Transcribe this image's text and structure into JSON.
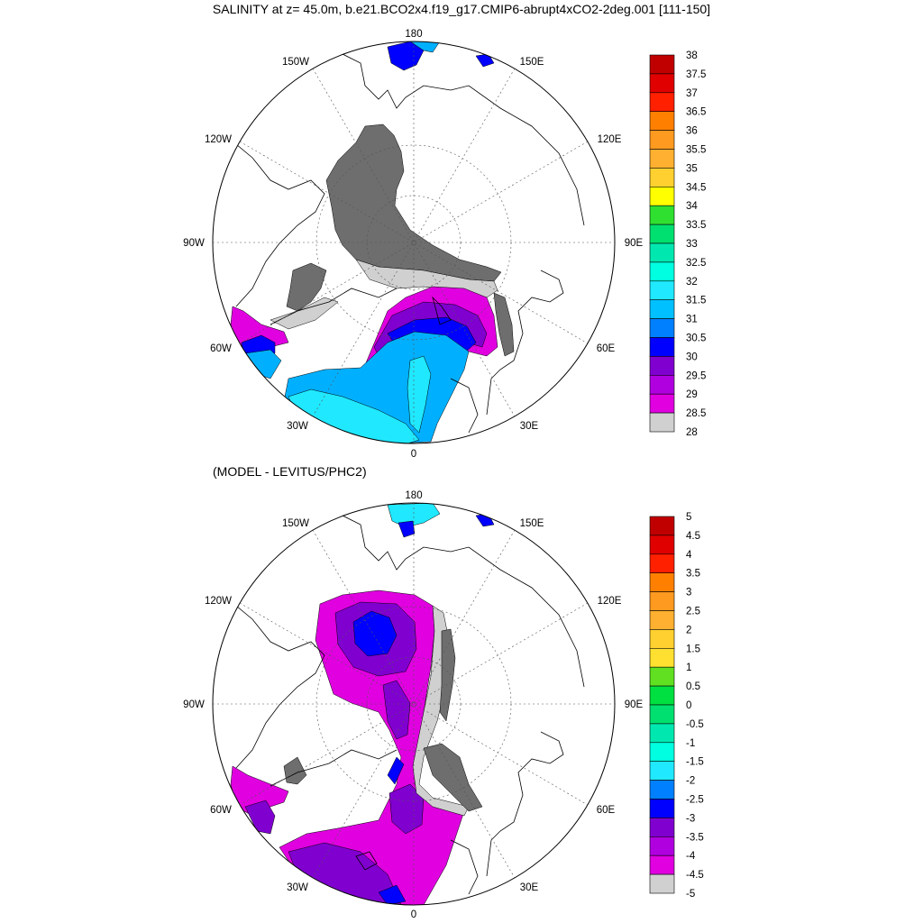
{
  "title": "SALINITY at z=  45.0m, b.e21.BCO2x4.f19_g17.CMIP6-abrupt4xCO2-2deg.001 [111-150]",
  "subtitle": "(MODEL - LEVITUS/PHC2)",
  "map_labels": {
    "lon_180": "180",
    "lon_150w": "150W",
    "lon_150e": "150E",
    "lon_120w": "120W",
    "lon_120e": "120E",
    "lon_90w": "90W",
    "lon_90e": "90E",
    "lon_60w": "60W",
    "lon_60e": "60E",
    "lon_30w": "30W",
    "lon_30e": "30E",
    "lon_0": "0"
  },
  "colorbar_top": {
    "labels": [
      "38",
      "37.5",
      "37",
      "36.5",
      "36",
      "35.5",
      "35",
      "34.5",
      "34",
      "33.5",
      "33",
      "32.5",
      "32",
      "31.5",
      "31",
      "30.5",
      "30",
      "29.5",
      "29",
      "28.5",
      "28"
    ],
    "colors": [
      "#c00000",
      "#e00000",
      "#ff2000",
      "#ff8000",
      "#ff9a20",
      "#ffb030",
      "#ffd030",
      "#ffff00",
      "#30e030",
      "#00e070",
      "#00e8b0",
      "#00ffe0",
      "#20e8ff",
      "#00c0ff",
      "#0080ff",
      "#0000ff",
      "#8000d0",
      "#b000e0",
      "#e000e0",
      "#d0d0d0"
    ]
  },
  "colorbar_bottom": {
    "labels": [
      "5",
      "4.5",
      "4",
      "3.5",
      "3",
      "2.5",
      "2",
      "1.5",
      "1",
      "0.5",
      "0",
      "-0.5",
      "-1",
      "-1.5",
      "-2",
      "-2.5",
      "-3",
      "-3.5",
      "-4",
      "-4.5",
      "-5"
    ],
    "colors": [
      "#c00000",
      "#e00000",
      "#ff2000",
      "#ff8000",
      "#ff9a20",
      "#ffb030",
      "#ffd030",
      "#ffe030",
      "#60e020",
      "#00e040",
      "#00e070",
      "#00e8b0",
      "#00ffe0",
      "#20e8ff",
      "#0080ff",
      "#0000ff",
      "#8000d0",
      "#b000e0",
      "#e000e0",
      "#d0d0d0"
    ]
  },
  "colors": {
    "dark_gray": "#6e6e6e",
    "light_gray": "#d0d0d0",
    "magenta": "#e000e0",
    "violet": "#8000d0",
    "blue": "#0000ff",
    "sky": "#00b0ff",
    "cyan": "#20e8ff"
  }
}
